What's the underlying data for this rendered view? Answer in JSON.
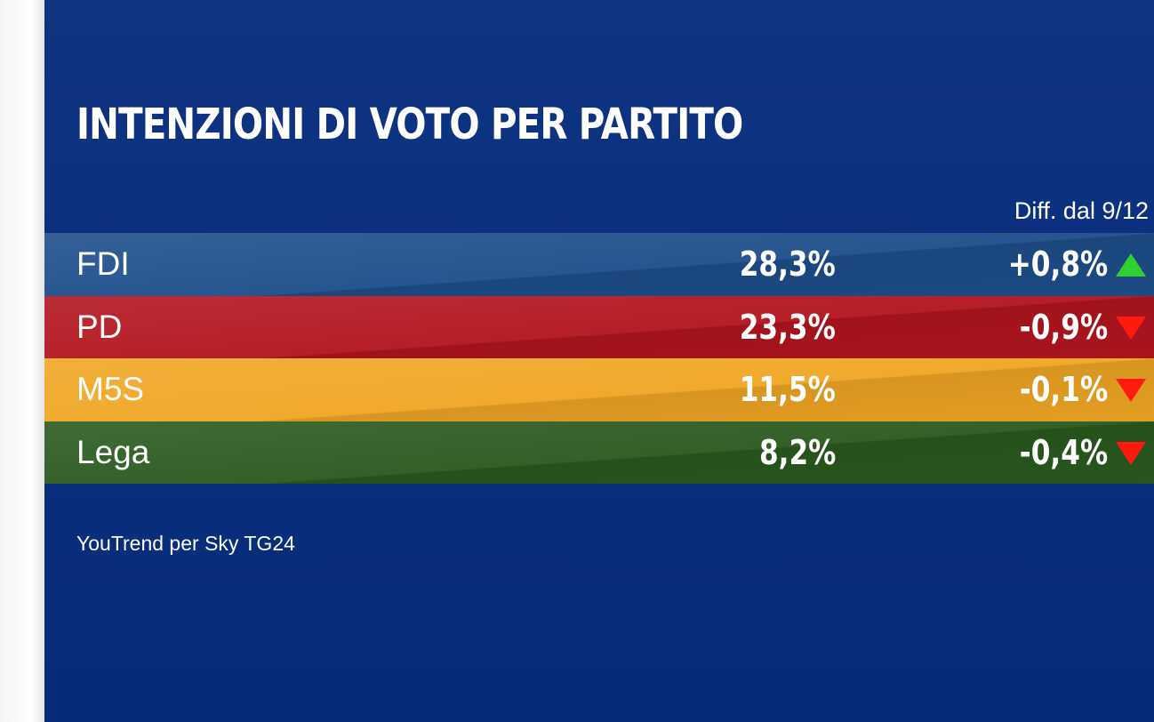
{
  "title": "INTENZIONI DI VOTO PER PARTITO",
  "diff_header": "Diff. dal 9/12",
  "source": "YouTrend per Sky TG24",
  "colors": {
    "background": "#0a2f7e",
    "up_arrow": "#2fd12f",
    "down_arrow": "#ff1a0d"
  },
  "chart_data": {
    "type": "table",
    "title": "INTENZIONI DI VOTO PER PARTITO",
    "columns": [
      "",
      "",
      "Diff. dal 9/12"
    ],
    "rows": [
      {
        "party": "FDI",
        "value": "28,3%",
        "change": "+0,8%",
        "direction": "up",
        "color": "#1e4e8c"
      },
      {
        "party": "PD",
        "value": "23,3%",
        "change": "-0,9%",
        "direction": "down",
        "color": "#b3151f"
      },
      {
        "party": "M5S",
        "value": "11,5%",
        "change": "-0,1%",
        "direction": "down",
        "color": "#f0a624"
      },
      {
        "party": "Lega",
        "value": "8,2%",
        "change": "-0,4%",
        "direction": "down",
        "color": "#2a5a1f"
      }
    ]
  }
}
